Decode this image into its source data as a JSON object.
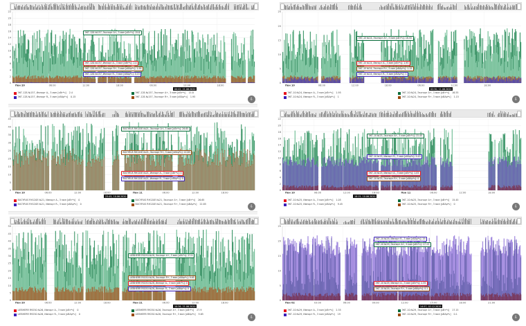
{
  "colors": {
    "import_active": "#e8141c",
    "export_active": "#0b6e3c",
    "import_reactive": "#3b1fb8",
    "export_reactive": "#9a4a0e",
    "export_active_fill": "#7fc4a0",
    "import_reactive_fill": "#6b6bb0",
    "purple_fill": "#a58ee0",
    "brown_fill": "#a07040"
  },
  "chart_data": [
    {
      "id": "p1",
      "type": "area",
      "title": "ЭКГ-12Б №157",
      "ylim": [
        0,
        22
      ],
      "yticks": [
        0,
        2,
        4,
        6,
        8,
        10,
        12,
        14,
        16,
        18,
        20,
        22
      ],
      "xticks": [
        "Пон 20",
        "06:00",
        "12:00",
        "18:00",
        "06:00",
        "12:00",
        "18:00"
      ],
      "xtick_bold": [
        0
      ],
      "timestamp": "00:42, 21.06.2020",
      "tooltips": [
        {
          "text": "ЭКГ-12Б №157, Экспорт А+, 3 мин [кВт*ч]: 15.8",
          "series": "export_active"
        },
        {
          "text": "ЭКГ-12Б №157, Импорт А-, 3 мин [кВт*ч]: 2.4",
          "series": "import_active"
        },
        {
          "text": "ЭКГ-12Б №157, Экспорт R+, 3 мин [кВАр*ч]: 1.95",
          "series": "export_reactive"
        },
        {
          "text": "ЭКГ-12Б №157, Импорт R-, 3 мин [кВАр*ч]: 0.15",
          "series": "import_reactive"
        }
      ],
      "legend": [
        {
          "label": "ЭКГ-12Б №157, Импорт А-, 3 мин [кВт*ч]",
          "value": "2.4",
          "series": "import_active"
        },
        {
          "label": "ЭКГ-12Б №157, Экспорт А+, 3 мин [кВт*ч]",
          "value": "15.8",
          "series": "export_active"
        },
        {
          "label": "ЭКГ-12Б №157, Импорт R-, 3 мин [кВАр*ч]",
          "value": "0.15",
          "series": "import_reactive"
        },
        {
          "label": "ЭКГ-12Б №157, Экспорт R+, 3 мин [кВАр*ч]",
          "value": "1.95",
          "series": "export_reactive"
        }
      ],
      "series_levels": {
        "export_active": 14,
        "export_reactive": 2,
        "import_reactive": 0.2,
        "base": 0
      },
      "stack": [
        "export_active",
        "export_reactive"
      ]
    },
    {
      "id": "p2",
      "type": "area",
      "title": "ЭКГ-10 №24",
      "ylim": [
        0,
        25
      ],
      "yticks": [
        0,
        5,
        10,
        15,
        20,
        25
      ],
      "xticks": [
        "Пон 10",
        "06:00",
        "12:00",
        "18:00",
        "06:00",
        "12:00",
        "18:00"
      ],
      "xtick_bold": [
        0
      ],
      "timestamp": "02:30, 11.06.2020",
      "tooltips": [
        {
          "text": "ЭКГ-10 №24, Экспорт А+, 3 мин [кВт*ч]: 16.55",
          "series": "export_active"
        },
        {
          "text": "ЭКГ-10 №24, Импорт А-, 3 мин [кВт*ч]: 1.95",
          "series": "import_active"
        },
        {
          "text": "ЭКГ-10 №24, Экспорт R+, 3 мин [кВАр*ч]: 1.15",
          "series": "export_reactive"
        },
        {
          "text": "ЭКГ-10 №24, Импорт R-, 3 мин [кВАр*ч]: 1",
          "series": "import_reactive"
        }
      ],
      "legend": [
        {
          "label": "ЭКГ-10 №24, Импорт А-, 3 мин [кВт*ч]",
          "value": "1.95",
          "series": "import_active"
        },
        {
          "label": "ЭКГ-10 №24, Экспорт А+, 3 мин [кВт*ч]",
          "value": "16.55",
          "series": "export_active"
        },
        {
          "label": "ЭКГ-10 №24, Импорт R-, 3 мин [кВАр*ч]",
          "value": "1",
          "series": "import_reactive"
        },
        {
          "label": "ЭКГ-10 №24, Экспорт R+, 3 мин [кВАр*ч]",
          "value": "1.15",
          "series": "export_reactive"
        }
      ],
      "series_levels": {
        "export_active": 16,
        "export_reactive": 2.2,
        "import_reactive": 1.5
      },
      "stack": [
        "export_active",
        "export_reactive"
      ]
    },
    {
      "id": "p3",
      "type": "area",
      "title": "BUCYRUS RH120E №21",
      "ylim": [
        0,
        45
      ],
      "yticks": [
        0,
        5,
        10,
        15,
        20,
        25,
        30,
        35,
        40,
        45
      ],
      "xticks": [
        "Пон 10",
        "06:00",
        "12:00",
        "18:00",
        "Пон 11",
        "06:00",
        "12:00",
        "18:00"
      ],
      "xtick_bold": [
        0,
        4
      ],
      "timestamp": "23:45, 10.06.2020",
      "tooltips": [
        {
          "text": "BUCYRUS RH120E №21, Экспорт А+, 3 мин [кВт*ч]: 26.65",
          "series": "export_active"
        },
        {
          "text": "BUCYRUS RH120E №21, Экспорт R+, 3 мин [кВАр*ч]: 22.85",
          "series": "export_reactive"
        },
        {
          "text": "BUCYRUS RH120E №21, Импорт А-, 3 мин [кВт*ч]: 0",
          "series": "import_active"
        },
        {
          "text": "BUCYRUS RH120E №21, Импорт R-, 3 мин [кВАр*ч]: 0",
          "series": "import_reactive"
        }
      ],
      "legend": [
        {
          "label": "BUCYRUS RH120E №21, Импорт А-, 3 мин [кВт*ч]",
          "value": "0",
          "series": "import_active"
        },
        {
          "label": "BUCYRUS RH120E №21, Экспорт А+, 3 мин [кВт*ч]",
          "value": "26.65",
          "series": "export_active"
        },
        {
          "label": "BUCYRUS RH120E №21, Импорт R-, 3 мин [кВАр*ч]",
          "value": "0",
          "series": "import_reactive"
        },
        {
          "label": "BUCYRUS RH120E №21, Экспорт R+, 3 мин [кВАр*ч]",
          "value": "22.85",
          "series": "export_reactive"
        }
      ],
      "series_levels": {
        "export_active": 36,
        "export_reactive": 22
      },
      "stack": [
        "export_active",
        "export_reactive"
      ]
    },
    {
      "id": "p4",
      "type": "area",
      "title": "ЭКГ-10 №25",
      "ylim": [
        0,
        22
      ],
      "yticks": [
        0,
        2,
        4,
        6,
        8,
        10,
        12,
        14,
        16,
        18,
        20,
        22
      ],
      "xticks": [
        "Пон 10",
        "06:00",
        "12:00",
        "18:00",
        "Пон 11",
        "06:00",
        "12:00",
        "18:00"
      ],
      "xtick_bold": [
        0,
        4
      ],
      "timestamp": "18:15, 10.06.2020",
      "tooltips": [
        {
          "text": "ЭКГ-10 №25, Экспорт А+, 3 мин [кВт*ч]: 15.45",
          "series": "export_active"
        },
        {
          "text": "ЭКГ-10 №25, Импорт R-, 3 мин [кВАр*ч]: 9.45",
          "series": "import_reactive"
        },
        {
          "text": "ЭКГ-10 №25, Импорт А-, 3 мин [кВт*ч]: 1.05",
          "series": "import_active"
        },
        {
          "text": "ЭКГ-10 №25, Экспорт R+, 3 мин [кВАр*ч]: 0",
          "series": "export_reactive"
        }
      ],
      "legend": [
        {
          "label": "ЭКГ-10 №25, Импорт А-, 3 мин [кВт*ч]",
          "value": "1.05",
          "series": "import_active"
        },
        {
          "label": "ЭКГ-10 №25, Экспорт А+, 3 мин [кВт*ч]",
          "value": "15.45",
          "series": "export_active"
        },
        {
          "label": "ЭКГ-10 №25, Импорт R-, 3 мин [кВАр*ч]",
          "value": "9.45",
          "series": "import_reactive"
        },
        {
          "label": "ЭКГ-10 №25, Экспорт R+, 3 мин [кВАр*ч]",
          "value": "0",
          "series": "export_reactive"
        }
      ],
      "series_levels": {
        "export_active": 16,
        "import_reactive": 9.5,
        "import_active": 1.2
      },
      "stack": [
        "export_active",
        "import_reactive"
      ]
    },
    {
      "id": "p5",
      "type": "area",
      "title": "LIEBHERR R9250 №26",
      "ylim": [
        0,
        50
      ],
      "yticks": [
        0,
        5,
        10,
        15,
        20,
        25,
        30,
        35,
        40,
        45,
        50
      ],
      "xticks": [
        "Пон 20",
        "06:00",
        "12:00",
        "18:00",
        "Пон 21",
        "06:00",
        "12:00",
        "18:00"
      ],
      "xtick_bold": [
        0,
        4
      ],
      "timestamp": "10:36, 21.06.2020",
      "tooltips": [
        {
          "text": "LIEBHERR R9250 №26, Экспорт А+, 3 мин [кВт*ч]: 27.9",
          "series": "export_active"
        },
        {
          "text": "LIEBHERR R9250 №26, Экспорт R+, 3 мин [кВАр*ч]: 9.65",
          "series": "export_reactive"
        },
        {
          "text": "LIEBHERR R9250 №26, Импорт А-, 3 мин [кВт*ч]: 0",
          "series": "import_active"
        },
        {
          "text": "LIEBHERR R9250 №26, Импорт R-, 3 мин [кВАр*ч]: 0",
          "series": "import_reactive"
        }
      ],
      "legend": [
        {
          "label": "LIEBHERR R9250 №26, Импорт А-, 3 мин [кВт*ч]",
          "value": "0",
          "series": "import_active"
        },
        {
          "label": "LIEBHERR R9250 №26, Экспорт А+, 3 мин [кВт*ч]",
          "value": "27.9",
          "series": "export_active"
        },
        {
          "label": "LIEBHERR R9250 №26, Импорт R-, 3 мин [кВАр*ч]",
          "value": "0",
          "series": "import_reactive"
        },
        {
          "label": "LIEBHERR R9250 №26, Экспорт R+, 3 мин [кВАр*ч]",
          "value": "9.65",
          "series": "export_reactive"
        }
      ],
      "series_levels": {
        "export_active": 40,
        "export_reactive": 8
      },
      "stack": [
        "export_active",
        "export_reactive"
      ]
    },
    {
      "id": "p6",
      "type": "area",
      "title": "ЭКГ-10 №29",
      "ylim": [
        0,
        25
      ],
      "yticks": [
        0,
        5,
        10,
        15,
        20,
        25
      ],
      "xticks": [
        "Пон 02",
        "03:00",
        "06:00",
        "09:00",
        "12:00",
        "15:00",
        "18:00",
        "21:00"
      ],
      "xtick_bold": [
        0
      ],
      "timestamp": "14:57, 02.12.2019",
      "tooltips": [
        {
          "text": "ЭКГ-10 №29, Импорт R-, 3 мин [кВАр*ч]: 19",
          "series": "import_reactive"
        },
        {
          "text": "ЭКГ-10 №29, Экспорт А+, 3 мин [кВт*ч]: 17.15",
          "series": "export_active"
        },
        {
          "text": "ЭКГ-10 №29, Импорт А-, 3 мин [кВт*ч]: 2.35",
          "series": "import_active"
        },
        {
          "text": "ЭКГ-10 №29, Экспорт R+, 3 мин [кВАр*ч]: 0.1",
          "series": "export_reactive"
        }
      ],
      "legend": [
        {
          "label": "ЭКГ-10 №29, Импорт А-, 3 мин [кВт*ч]",
          "value": "2.35",
          "series": "import_active"
        },
        {
          "label": "ЭКГ-10 №29, Экспорт А+, 3 мин [кВт*ч]",
          "value": "17.15",
          "series": "export_active"
        },
        {
          "label": "ЭКГ-10 №29, Импорт R-, 3 мин [кВАр*ч]",
          "value": "19",
          "series": "import_reactive"
        },
        {
          "label": "ЭКГ-10 №29, Экспорт R+, 3 мин [кВАр*ч]",
          "value": "0.1",
          "series": "export_reactive"
        }
      ],
      "series_levels": {
        "import_reactive": 20,
        "export_active": 17,
        "import_active": 2
      },
      "stack": [
        "purple",
        "import_reactive_dark"
      ]
    }
  ]
}
